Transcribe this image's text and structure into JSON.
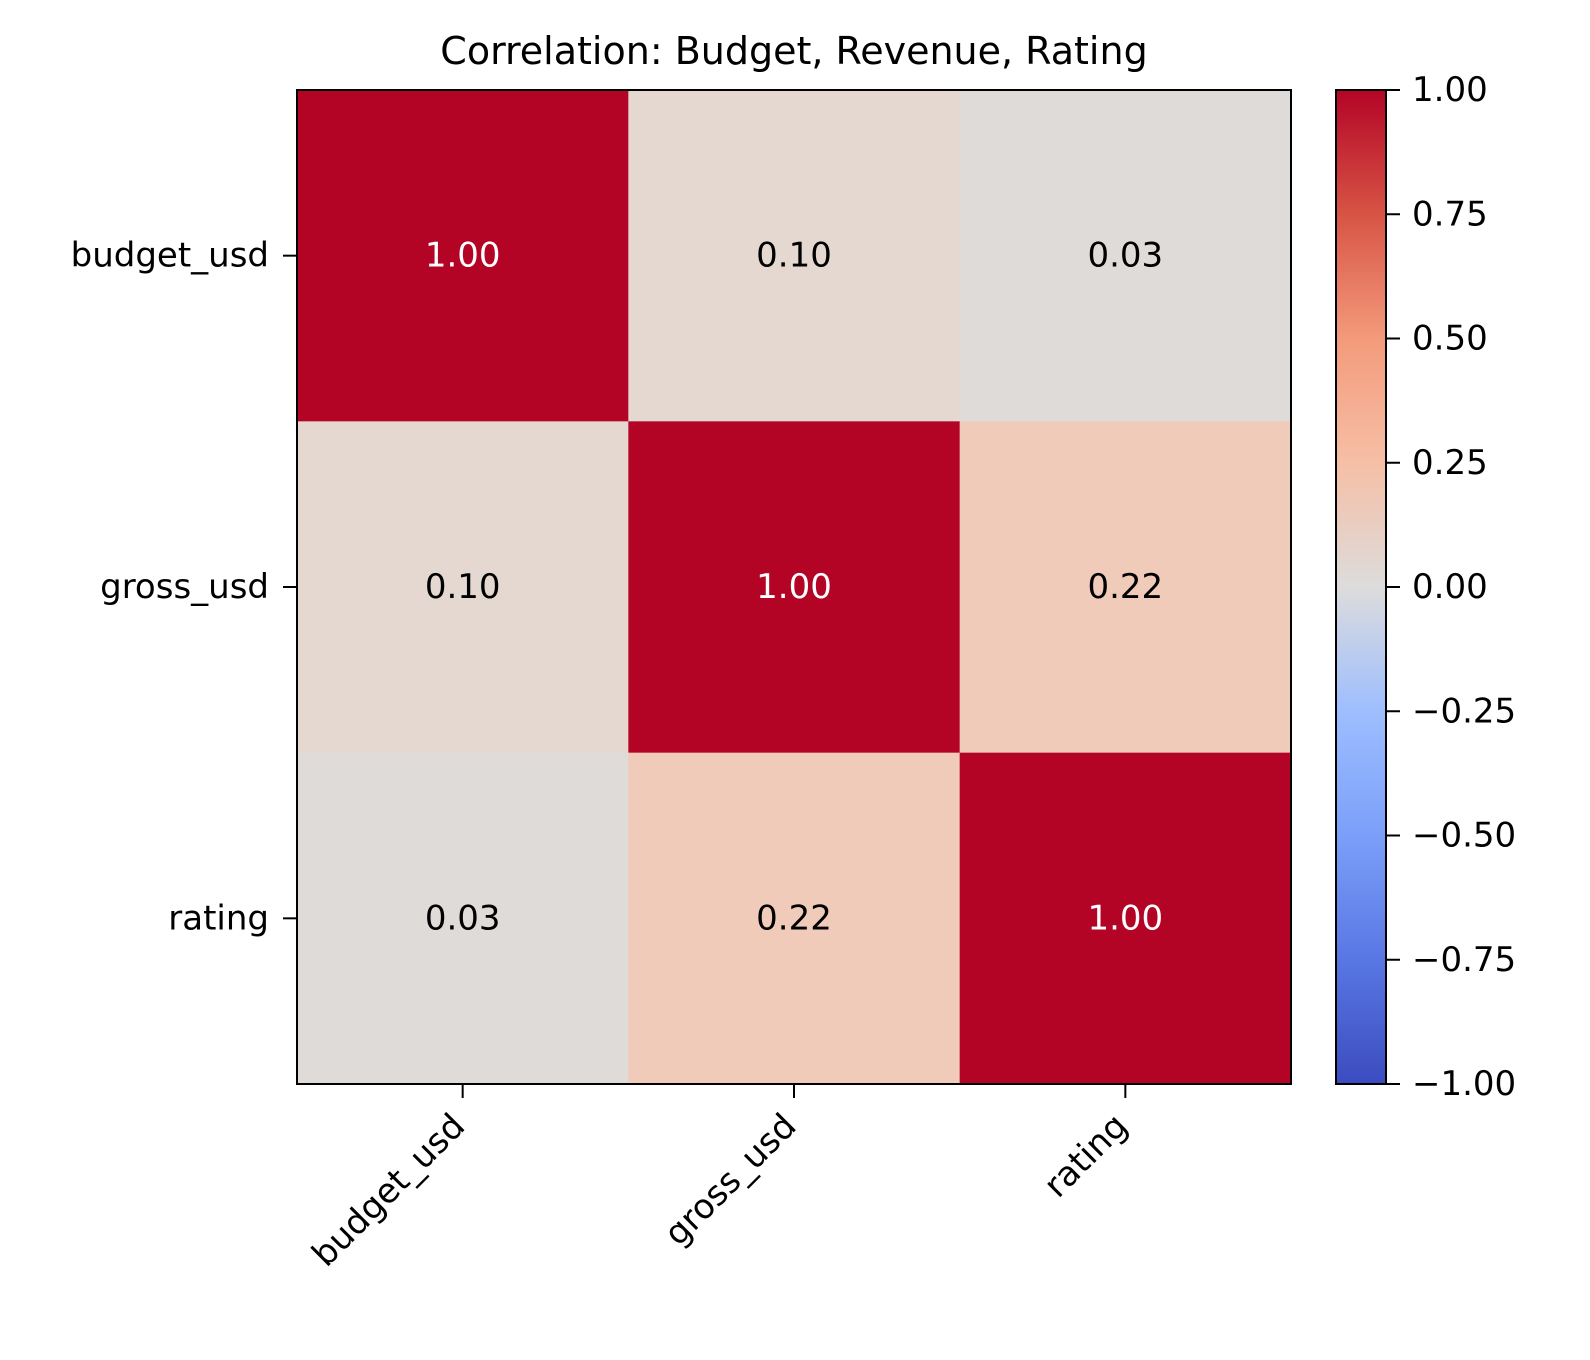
{
  "chart_data": {
    "type": "heatmap",
    "title": "Correlation: Budget, Revenue, Rating",
    "xlabel": "",
    "ylabel": "",
    "x_categories": [
      "budget_usd",
      "gross_usd",
      "rating"
    ],
    "y_categories": [
      "budget_usd",
      "gross_usd",
      "rating"
    ],
    "values": [
      [
        1.0,
        0.1,
        0.03
      ],
      [
        0.1,
        1.0,
        0.22
      ],
      [
        0.03,
        0.22,
        1.0
      ]
    ],
    "value_labels": [
      [
        "1.00",
        "0.10",
        "0.03"
      ],
      [
        "0.10",
        "1.00",
        "0.22"
      ],
      [
        "0.03",
        "0.22",
        "1.00"
      ]
    ],
    "colormap": "coolwarm",
    "vmin": -1.0,
    "vmax": 1.0,
    "colorbar_ticks": [
      1.0,
      0.75,
      0.5,
      0.25,
      0.0,
      -0.25,
      -0.5,
      -0.75,
      -1.0
    ],
    "colorbar_tick_labels": [
      "1.00",
      "0.75",
      "0.50",
      "0.25",
      "0.00",
      "−0.25",
      "−0.50",
      "−0.75",
      "−1.00"
    ],
    "colorbar_position": "right",
    "x_tick_rotation_deg": 45,
    "grid": false
  }
}
